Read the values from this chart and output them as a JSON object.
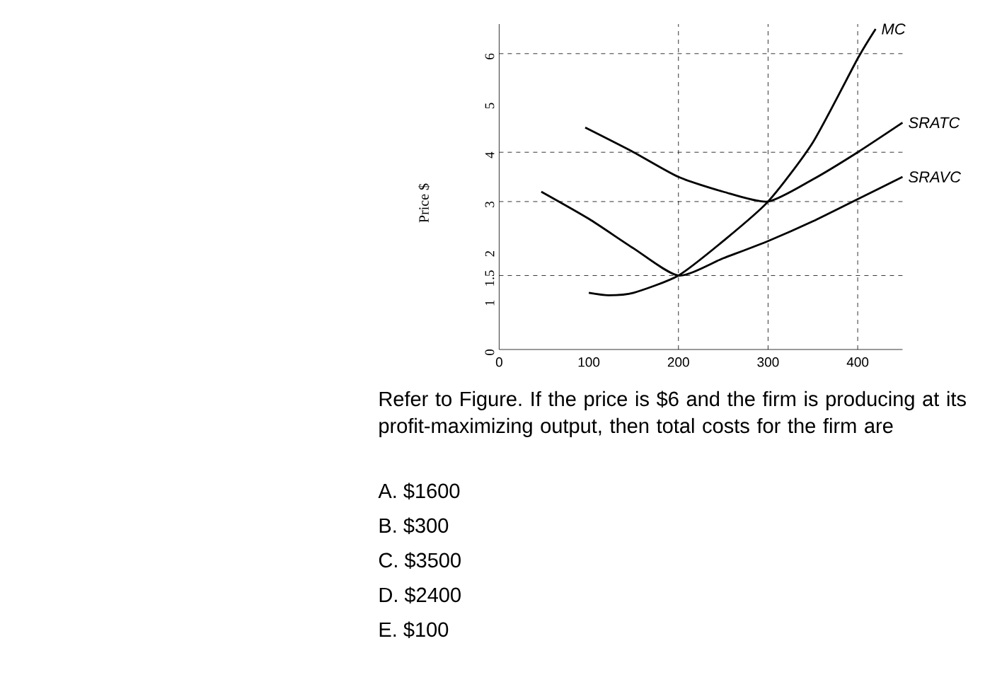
{
  "chart_data": {
    "type": "line",
    "ylabel": "Price $",
    "xlim": [
      0,
      450
    ],
    "ylim": [
      0,
      6.6
    ],
    "xticks": [
      0,
      100,
      200,
      300,
      400
    ],
    "yticks": [
      0,
      1,
      1.5,
      2,
      3,
      4,
      5,
      6
    ],
    "marker": "none",
    "line_style": "solid",
    "series": [
      {
        "name": "MC",
        "color": "#000000",
        "x": [
          100,
          122,
          150,
          200,
          250,
          300,
          350,
          400,
          420
        ],
        "values": [
          1.15,
          1.1,
          1.15,
          1.5,
          2.2,
          3.0,
          4.2,
          5.9,
          6.5
        ]
      },
      {
        "name": "SRATC",
        "color": "#000000",
        "x": [
          96,
          150,
          200,
          250,
          300,
          350,
          400,
          450
        ],
        "values": [
          4.5,
          4.0,
          3.5,
          3.2,
          3.0,
          3.45,
          4.0,
          4.6
        ]
      },
      {
        "name": "SRAVC",
        "color": "#000000",
        "x": [
          47,
          100,
          150,
          200,
          250,
          300,
          350,
          400,
          450
        ],
        "values": [
          3.2,
          2.65,
          2.05,
          1.5,
          1.85,
          2.2,
          2.6,
          3.05,
          3.5
        ]
      }
    ],
    "ref_lines": [
      {
        "axis": "y",
        "value": 6,
        "line_style": "dashed"
      },
      {
        "axis": "y",
        "value": 4,
        "line_style": "dashed"
      },
      {
        "axis": "y",
        "value": 3,
        "line_style": "dashed"
      },
      {
        "axis": "y",
        "value": 1.5,
        "line_style": "dashed"
      },
      {
        "axis": "x",
        "value": 200,
        "line_style": "dashed"
      },
      {
        "axis": "x",
        "value": 300,
        "line_style": "dashed"
      },
      {
        "axis": "x",
        "value": 400,
        "line_style": "dashed"
      }
    ],
    "annotations": [
      "Refer to Figure. If the price is $6 and the firm is producing at its profit-maximizing output, then total costs for the firm are",
      "A. $1600",
      "B. $300",
      "C. $3500",
      "D. $2400",
      "E. $100"
    ]
  }
}
